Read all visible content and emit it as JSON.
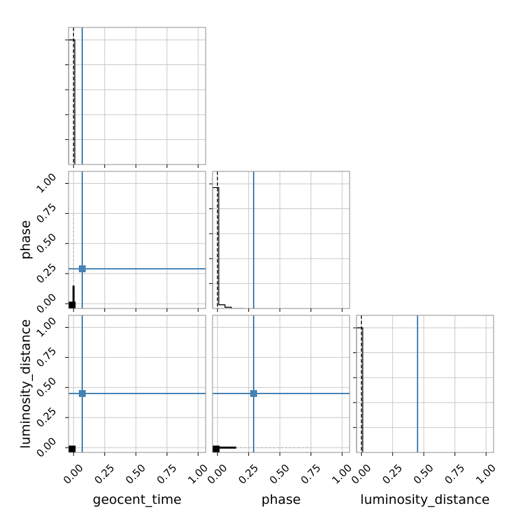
{
  "chart_data": {
    "type": "corner",
    "parameters": [
      "geocent_time",
      "phase",
      "luminosity_distance"
    ],
    "axis_labels": {
      "x": [
        "geocent_time",
        "phase",
        "luminosity_distance"
      ],
      "y": [
        "",
        "phase",
        "luminosity_distance"
      ]
    },
    "tick_labels": [
      "0.00",
      "0.25",
      "0.50",
      "0.75",
      "1.00"
    ],
    "ticks": [
      0,
      0.25,
      0.5,
      0.75,
      1.0
    ],
    "xlim": [
      -0.04,
      1.06
    ],
    "ylim": [
      -0.04,
      1.1
    ],
    "grid": true,
    "truths": [
      0.07,
      0.29,
      0.45
    ],
    "truth_color": "#4682b4",
    "sample_color": "#000000",
    "hist_color": "#000000",
    "quantile": 0.0,
    "histograms": [
      {
        "parameter": "geocent_time",
        "bin_edges": [
          -0.04,
          0.01
        ],
        "counts": [
          1.0
        ]
      },
      {
        "parameter": "phase",
        "bin_edges": [
          -0.04,
          0.01,
          0.06,
          0.11,
          0.16,
          0.21
        ],
        "counts": [
          0.97,
          0.03,
          0.01,
          0.0,
          0.0
        ]
      },
      {
        "parameter": "luminosity_distance",
        "bin_edges": [
          -0.04,
          0.01
        ],
        "counts": [
          1.0
        ]
      }
    ],
    "scatter_tails": [
      {
        "row": 1,
        "col": 0,
        "orientation": "vertical",
        "near": [
          0.0,
          0.15
        ],
        "far": [
          0.15,
          0.75
        ]
      },
      {
        "row": 2,
        "col": 1,
        "orientation": "horizontal",
        "near": [
          0.0,
          0.15
        ],
        "far": [
          0.15,
          0.75
        ]
      }
    ]
  }
}
